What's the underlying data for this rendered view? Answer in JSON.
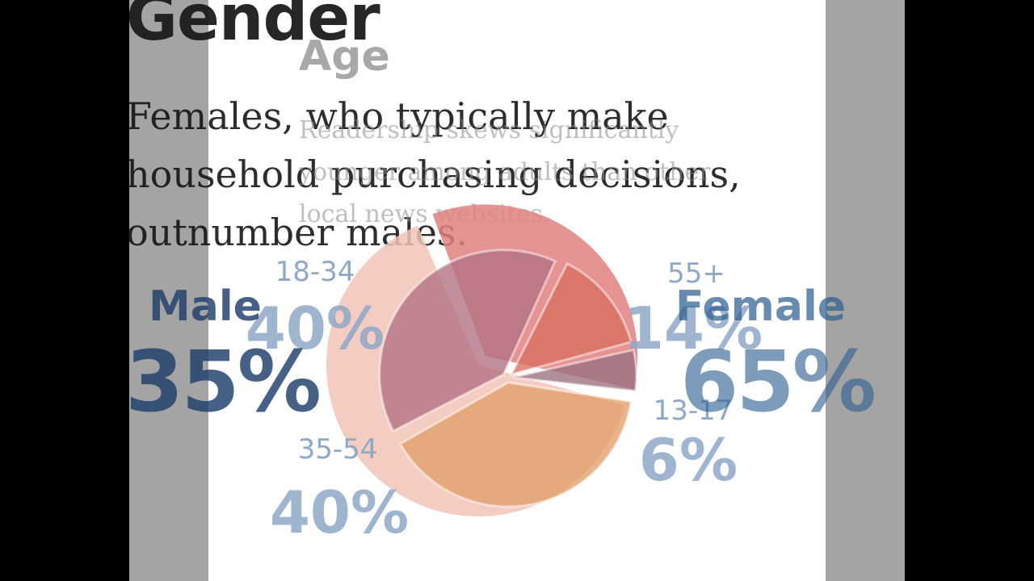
{
  "gender_slide": {
    "title": "Gender",
    "subtitle": "Females, who typically make household purchasing decisions, outnumber males.",
    "male": {
      "label": "Male",
      "value": "35%"
    },
    "female": {
      "label": "Female",
      "value": "65%"
    }
  },
  "age_slide": {
    "title": "Age",
    "subtitle": "Readership skews significantly younger among adults than other local news websites."
  },
  "colors": {
    "male_text": "#1e3f6b",
    "female_text": "#2f5f93",
    "age_label_text": "#8fa8c6",
    "background_gray": "#a4a4a4",
    "page_white": "#ffffff"
  },
  "chart_data": [
    {
      "type": "pie",
      "title": "Gender",
      "categories": [
        "Male",
        "Female"
      ],
      "values": [
        35,
        65
      ],
      "colors": [
        "#e08080",
        "#f2c3b6"
      ]
    },
    {
      "type": "pie",
      "title": "Age",
      "categories": [
        "13-17",
        "18-34",
        "35-54",
        "55+"
      ],
      "values": [
        6,
        40,
        40,
        14
      ],
      "value_labels": [
        "6%",
        "40%",
        "40%",
        "14%"
      ],
      "colors": [
        "#9a7080",
        "#e3a06a",
        "#b27282",
        "#d8705e"
      ]
    }
  ]
}
